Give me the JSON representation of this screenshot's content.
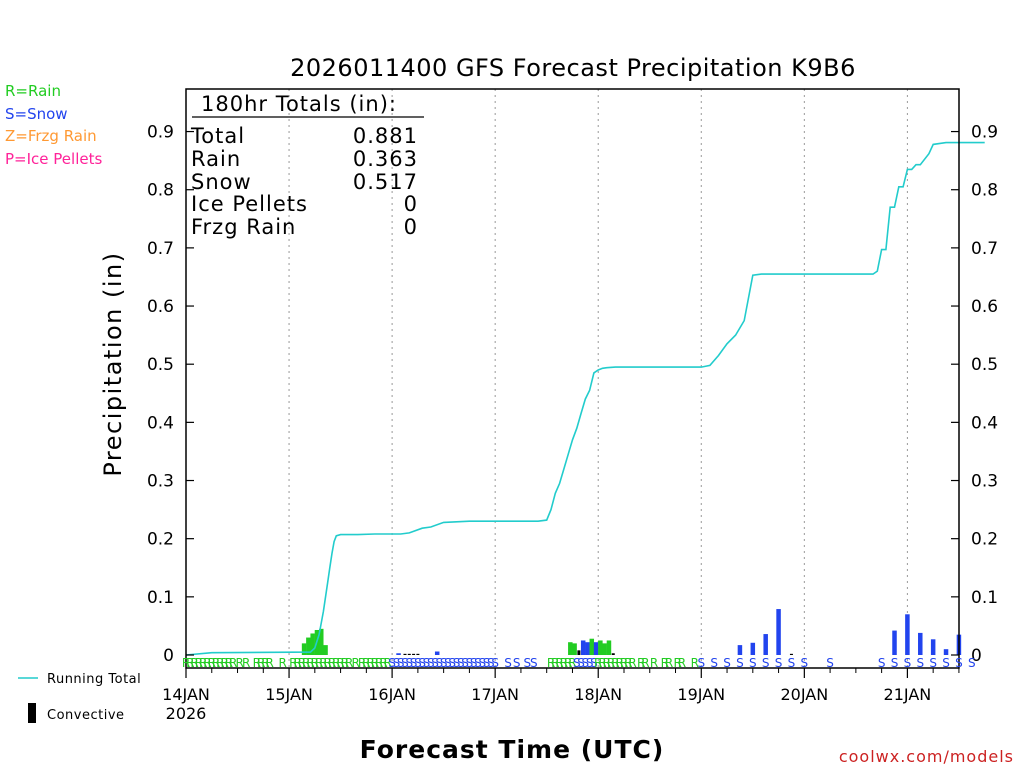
{
  "chart_data": {
    "type": "bar",
    "title": "2026011400 GFS Forecast Precipitation K9B6",
    "xlabel": "Forecast Time (UTC)",
    "ylabel": "Precipitation (in)",
    "credit": "coolwx.com/models",
    "ylim": [
      0,
      0.97
    ],
    "yticks": [
      "0",
      "0.1",
      "0.2",
      "0.3",
      "0.4",
      "0.5",
      "0.6",
      "0.7",
      "0.8",
      "0.9"
    ],
    "xlim_hours": [
      0,
      186
    ],
    "xticks": [
      {
        "hour": 0,
        "label": "14JAN",
        "sublabel": "2026"
      },
      {
        "hour": 24,
        "label": "15JAN"
      },
      {
        "hour": 48,
        "label": "16JAN"
      },
      {
        "hour": 72,
        "label": "17JAN"
      },
      {
        "hour": 96,
        "label": "18JAN"
      },
      {
        "hour": 120,
        "label": "19JAN"
      },
      {
        "hour": 144,
        "label": "20JAN"
      },
      {
        "hour": 168,
        "label": "21JAN"
      }
    ],
    "type_legend": [
      {
        "label": "R=Rain",
        "color": "#22cc22"
      },
      {
        "label": "S=Snow",
        "color": "#2244ee"
      },
      {
        "label": "Z=Frzg Rain",
        "color": "#ff9933"
      },
      {
        "label": "P=Ice Pellets",
        "color": "#ff2299"
      }
    ],
    "series_legend": [
      {
        "label": "Running Total",
        "color": "#22cccc"
      },
      {
        "label": "Convective",
        "color": "#000000"
      }
    ],
    "totals": {
      "heading": "180hr Totals (in):",
      "rows": [
        {
          "label": "Total",
          "value": "0.881"
        },
        {
          "label": "Rain",
          "value": "0.363"
        },
        {
          "label": "Snow",
          "value": "0.517"
        },
        {
          "label": "Ice Pellets",
          "value": "0"
        },
        {
          "label": "Frzg Rain",
          "value": "0"
        }
      ]
    },
    "running_total": {
      "name": "Running Total",
      "hours": [
        0,
        6,
        29,
        30,
        31,
        32,
        33,
        33.5,
        34,
        34.5,
        35,
        36,
        37,
        40,
        44,
        48,
        50,
        52,
        55,
        57,
        60,
        63,
        66,
        70,
        74,
        78,
        82,
        84,
        85,
        86,
        87,
        88,
        89,
        90,
        91,
        92,
        93,
        94,
        95,
        96,
        97,
        98,
        100,
        104,
        108,
        112,
        116,
        120,
        122,
        124,
        126,
        128,
        130,
        132,
        134,
        136,
        140,
        144,
        148,
        152,
        156,
        160,
        161,
        162,
        163,
        164,
        165,
        166,
        167,
        168,
        169,
        170,
        171,
        173,
        174,
        176,
        177,
        178,
        180,
        186
      ],
      "values": [
        0,
        0.004,
        0.005,
        0.012,
        0.035,
        0.075,
        0.125,
        0.15,
        0.175,
        0.195,
        0.205,
        0.207,
        0.207,
        0.207,
        0.208,
        0.208,
        0.208,
        0.21,
        0.218,
        0.22,
        0.228,
        0.229,
        0.23,
        0.23,
        0.23,
        0.23,
        0.23,
        0.232,
        0.25,
        0.278,
        0.295,
        0.32,
        0.345,
        0.37,
        0.39,
        0.415,
        0.44,
        0.455,
        0.485,
        0.49,
        0.493,
        0.494,
        0.495,
        0.495,
        0.495,
        0.495,
        0.495,
        0.495,
        0.498,
        0.515,
        0.535,
        0.55,
        0.575,
        0.653,
        0.655,
        0.655,
        0.655,
        0.655,
        0.655,
        0.655,
        0.655,
        0.655,
        0.66,
        0.697,
        0.697,
        0.77,
        0.77,
        0.805,
        0.805,
        0.835,
        0.835,
        0.843,
        0.843,
        0.862,
        0.878,
        0.88,
        0.881,
        0.881,
        0.881,
        0.881
      ]
    },
    "bars": [
      {
        "hour": 27.5,
        "value": 0.02,
        "kind": "rain"
      },
      {
        "hour": 28.5,
        "value": 0.03,
        "kind": "rain"
      },
      {
        "hour": 29.5,
        "value": 0.037,
        "kind": "rain"
      },
      {
        "hour": 30.5,
        "value": 0.043,
        "kind": "rain"
      },
      {
        "hour": 31.5,
        "value": 0.045,
        "kind": "rain"
      },
      {
        "hour": 32.5,
        "value": 0.017,
        "kind": "rain"
      },
      {
        "hour": 49.5,
        "value": 0.003,
        "kind": "snow"
      },
      {
        "hour": 51,
        "value": 0.002,
        "kind": "convective"
      },
      {
        "hour": 52,
        "value": 0.002,
        "kind": "convective"
      },
      {
        "hour": 53,
        "value": 0.002,
        "kind": "convective"
      },
      {
        "hour": 54,
        "value": 0.002,
        "kind": "convective"
      },
      {
        "hour": 58.5,
        "value": 0.006,
        "kind": "snow"
      },
      {
        "hour": 89.5,
        "value": 0.022,
        "kind": "rain"
      },
      {
        "hour": 90.5,
        "value": 0.02,
        "kind": "rain"
      },
      {
        "hour": 91.5,
        "value": 0.008,
        "kind": "convective"
      },
      {
        "hour": 92.5,
        "value": 0.025,
        "kind": "snow"
      },
      {
        "hour": 93.5,
        "value": 0.022,
        "kind": "snow"
      },
      {
        "hour": 94.5,
        "value": 0.028,
        "kind": "rain"
      },
      {
        "hour": 95.5,
        "value": 0.022,
        "kind": "snow"
      },
      {
        "hour": 96.5,
        "value": 0.025,
        "kind": "rain"
      },
      {
        "hour": 97.5,
        "value": 0.02,
        "kind": "rain"
      },
      {
        "hour": 98.5,
        "value": 0.025,
        "kind": "rain"
      },
      {
        "hour": 99.5,
        "value": 0.003,
        "kind": "convective"
      },
      {
        "hour": 129,
        "value": 0.017,
        "kind": "snow"
      },
      {
        "hour": 132,
        "value": 0.021,
        "kind": "snow"
      },
      {
        "hour": 135,
        "value": 0.036,
        "kind": "snow"
      },
      {
        "hour": 138,
        "value": 0.079,
        "kind": "snow"
      },
      {
        "hour": 141,
        "value": 0.002,
        "kind": "convective"
      },
      {
        "hour": 165,
        "value": 0.042,
        "kind": "snow"
      },
      {
        "hour": 168,
        "value": 0.07,
        "kind": "snow"
      },
      {
        "hour": 171,
        "value": 0.038,
        "kind": "snow"
      },
      {
        "hour": 174,
        "value": 0.027,
        "kind": "snow"
      },
      {
        "hour": 177,
        "value": 0.01,
        "kind": "snow"
      },
      {
        "hour": 180,
        "value": 0.035,
        "kind": "snow"
      }
    ],
    "type_markers": [
      {
        "hour": 0.0,
        "letter": "R",
        "kind": "rain"
      },
      {
        "hour": 1.0,
        "letter": "R",
        "kind": "rain"
      },
      {
        "hour": 2.0,
        "letter": "R",
        "kind": "rain"
      },
      {
        "hour": 3.0,
        "letter": "R",
        "kind": "rain"
      },
      {
        "hour": 4.0,
        "letter": "R",
        "kind": "rain"
      },
      {
        "hour": 5.0,
        "letter": "R",
        "kind": "rain"
      },
      {
        "hour": 6.0,
        "letter": "R",
        "kind": "rain"
      },
      {
        "hour": 7.0,
        "letter": "R",
        "kind": "rain"
      },
      {
        "hour": 8.0,
        "letter": "R",
        "kind": "rain"
      },
      {
        "hour": 9.0,
        "letter": "R",
        "kind": "rain"
      },
      {
        "hour": 10.0,
        "letter": "R",
        "kind": "rain"
      },
      {
        "hour": 11.0,
        "letter": "R",
        "kind": "rain"
      },
      {
        "hour": 12.5,
        "letter": "R",
        "kind": "rain"
      },
      {
        "hour": 14.0,
        "letter": "R",
        "kind": "rain"
      },
      {
        "hour": 16.5,
        "letter": "R",
        "kind": "rain"
      },
      {
        "hour": 17.5,
        "letter": "R",
        "kind": "rain"
      },
      {
        "hour": 18.5,
        "letter": "R",
        "kind": "rain"
      },
      {
        "hour": 19.5,
        "letter": "R",
        "kind": "rain"
      },
      {
        "hour": 22.5,
        "letter": "R",
        "kind": "rain"
      },
      {
        "hour": 25.0,
        "letter": "R",
        "kind": "rain"
      },
      {
        "hour": 26.0,
        "letter": "R",
        "kind": "rain"
      },
      {
        "hour": 27.0,
        "letter": "R",
        "kind": "rain"
      },
      {
        "hour": 28.0,
        "letter": "R",
        "kind": "rain"
      },
      {
        "hour": 29.0,
        "letter": "R",
        "kind": "rain"
      },
      {
        "hour": 30.0,
        "letter": "R",
        "kind": "rain"
      },
      {
        "hour": 31.0,
        "letter": "R",
        "kind": "rain"
      },
      {
        "hour": 32.0,
        "letter": "R",
        "kind": "rain"
      },
      {
        "hour": 33.0,
        "letter": "R",
        "kind": "rain"
      },
      {
        "hour": 34.0,
        "letter": "R",
        "kind": "rain"
      },
      {
        "hour": 35.0,
        "letter": "R",
        "kind": "rain"
      },
      {
        "hour": 36.0,
        "letter": "R",
        "kind": "rain"
      },
      {
        "hour": 37.0,
        "letter": "R",
        "kind": "rain"
      },
      {
        "hour": 38.0,
        "letter": "R",
        "kind": "rain"
      },
      {
        "hour": 39.5,
        "letter": "R",
        "kind": "rain"
      },
      {
        "hour": 41.0,
        "letter": "R",
        "kind": "rain"
      },
      {
        "hour": 42.0,
        "letter": "R",
        "kind": "rain"
      },
      {
        "hour": 43.0,
        "letter": "R",
        "kind": "rain"
      },
      {
        "hour": 44.0,
        "letter": "R",
        "kind": "rain"
      },
      {
        "hour": 45.0,
        "letter": "R",
        "kind": "rain"
      },
      {
        "hour": 46.0,
        "letter": "R",
        "kind": "rain"
      },
      {
        "hour": 47.0,
        "letter": "R",
        "kind": "rain"
      },
      {
        "hour": 48.0,
        "letter": "S",
        "kind": "snow"
      },
      {
        "hour": 49.0,
        "letter": "S",
        "kind": "snow"
      },
      {
        "hour": 50.0,
        "letter": "S",
        "kind": "snow"
      },
      {
        "hour": 51.0,
        "letter": "S",
        "kind": "snow"
      },
      {
        "hour": 52.0,
        "letter": "S",
        "kind": "snow"
      },
      {
        "hour": 53.0,
        "letter": "S",
        "kind": "snow"
      },
      {
        "hour": 54.0,
        "letter": "S",
        "kind": "snow"
      },
      {
        "hour": 55.0,
        "letter": "S",
        "kind": "snow"
      },
      {
        "hour": 56.0,
        "letter": "S",
        "kind": "snow"
      },
      {
        "hour": 57.0,
        "letter": "S",
        "kind": "snow"
      },
      {
        "hour": 58.0,
        "letter": "S",
        "kind": "snow"
      },
      {
        "hour": 59.0,
        "letter": "S",
        "kind": "snow"
      },
      {
        "hour": 60.0,
        "letter": "S",
        "kind": "snow"
      },
      {
        "hour": 61.0,
        "letter": "S",
        "kind": "snow"
      },
      {
        "hour": 62.0,
        "letter": "S",
        "kind": "snow"
      },
      {
        "hour": 63.0,
        "letter": "S",
        "kind": "snow"
      },
      {
        "hour": 64.0,
        "letter": "S",
        "kind": "snow"
      },
      {
        "hour": 65.0,
        "letter": "S",
        "kind": "snow"
      },
      {
        "hour": 66.0,
        "letter": "S",
        "kind": "snow"
      },
      {
        "hour": 67.0,
        "letter": "S",
        "kind": "snow"
      },
      {
        "hour": 68.0,
        "letter": "S",
        "kind": "snow"
      },
      {
        "hour": 69.0,
        "letter": "S",
        "kind": "snow"
      },
      {
        "hour": 70.0,
        "letter": "S",
        "kind": "snow"
      },
      {
        "hour": 71.0,
        "letter": "S",
        "kind": "snow"
      },
      {
        "hour": 72.0,
        "letter": "S",
        "kind": "snow"
      },
      {
        "hour": 75.0,
        "letter": "S",
        "kind": "snow"
      },
      {
        "hour": 77.0,
        "letter": "S",
        "kind": "snow"
      },
      {
        "hour": 79.5,
        "letter": "S",
        "kind": "snow"
      },
      {
        "hour": 81.0,
        "letter": "S",
        "kind": "snow"
      },
      {
        "hour": 85.0,
        "letter": "R",
        "kind": "rain"
      },
      {
        "hour": 86.0,
        "letter": "R",
        "kind": "rain"
      },
      {
        "hour": 87.0,
        "letter": "R",
        "kind": "rain"
      },
      {
        "hour": 88.0,
        "letter": "R",
        "kind": "rain"
      },
      {
        "hour": 89.0,
        "letter": "R",
        "kind": "rain"
      },
      {
        "hour": 90.0,
        "letter": "R",
        "kind": "rain"
      },
      {
        "hour": 91.0,
        "letter": "S",
        "kind": "snow"
      },
      {
        "hour": 92.0,
        "letter": "S",
        "kind": "snow"
      },
      {
        "hour": 93.0,
        "letter": "S",
        "kind": "snow"
      },
      {
        "hour": 94.0,
        "letter": "S",
        "kind": "snow"
      },
      {
        "hour": 95.0,
        "letter": "S",
        "kind": "snow"
      },
      {
        "hour": 96.0,
        "letter": "R",
        "kind": "rain"
      },
      {
        "hour": 97.0,
        "letter": "R",
        "kind": "rain"
      },
      {
        "hour": 98.0,
        "letter": "R",
        "kind": "rain"
      },
      {
        "hour": 99.0,
        "letter": "R",
        "kind": "rain"
      },
      {
        "hour": 100.0,
        "letter": "R",
        "kind": "rain"
      },
      {
        "hour": 101.0,
        "letter": "R",
        "kind": "rain"
      },
      {
        "hour": 102.0,
        "letter": "R",
        "kind": "rain"
      },
      {
        "hour": 103.0,
        "letter": "R",
        "kind": "rain"
      },
      {
        "hour": 104.0,
        "letter": "R",
        "kind": "rain"
      },
      {
        "hour": 106.0,
        "letter": "R",
        "kind": "rain"
      },
      {
        "hour": 107.0,
        "letter": "R",
        "kind": "rain"
      },
      {
        "hour": 109.0,
        "letter": "R",
        "kind": "rain"
      },
      {
        "hour": 111.5,
        "letter": "R",
        "kind": "rain"
      },
      {
        "hour": 112.5,
        "letter": "R",
        "kind": "rain"
      },
      {
        "hour": 114.5,
        "letter": "R",
        "kind": "rain"
      },
      {
        "hour": 115.5,
        "letter": "R",
        "kind": "rain"
      },
      {
        "hour": 118.5,
        "letter": "R",
        "kind": "rain"
      },
      {
        "hour": 120.0,
        "letter": "S",
        "kind": "snow"
      },
      {
        "hour": 123.0,
        "letter": "S",
        "kind": "snow"
      },
      {
        "hour": 126.0,
        "letter": "S",
        "kind": "snow"
      },
      {
        "hour": 129.0,
        "letter": "S",
        "kind": "snow"
      },
      {
        "hour": 132.0,
        "letter": "S",
        "kind": "snow"
      },
      {
        "hour": 135.0,
        "letter": "S",
        "kind": "snow"
      },
      {
        "hour": 138.0,
        "letter": "S",
        "kind": "snow"
      },
      {
        "hour": 141.0,
        "letter": "S",
        "kind": "snow"
      },
      {
        "hour": 144.0,
        "letter": "S",
        "kind": "snow"
      },
      {
        "hour": 150.0,
        "letter": "S",
        "kind": "snow"
      },
      {
        "hour": 162.0,
        "letter": "S",
        "kind": "snow"
      },
      {
        "hour": 165.0,
        "letter": "S",
        "kind": "snow"
      },
      {
        "hour": 168.0,
        "letter": "S",
        "kind": "snow"
      },
      {
        "hour": 171.0,
        "letter": "S",
        "kind": "snow"
      },
      {
        "hour": 174.0,
        "letter": "S",
        "kind": "snow"
      },
      {
        "hour": 177.0,
        "letter": "S",
        "kind": "snow"
      },
      {
        "hour": 180.0,
        "letter": "S",
        "kind": "snow"
      },
      {
        "hour": 183.0,
        "letter": "S",
        "kind": "snow"
      }
    ]
  },
  "colors": {
    "rain": "#22cc22",
    "snow": "#2244ee",
    "convective": "#000000",
    "running_total": "#22cccc",
    "credit": "#cc2222",
    "grid": "#999999"
  }
}
